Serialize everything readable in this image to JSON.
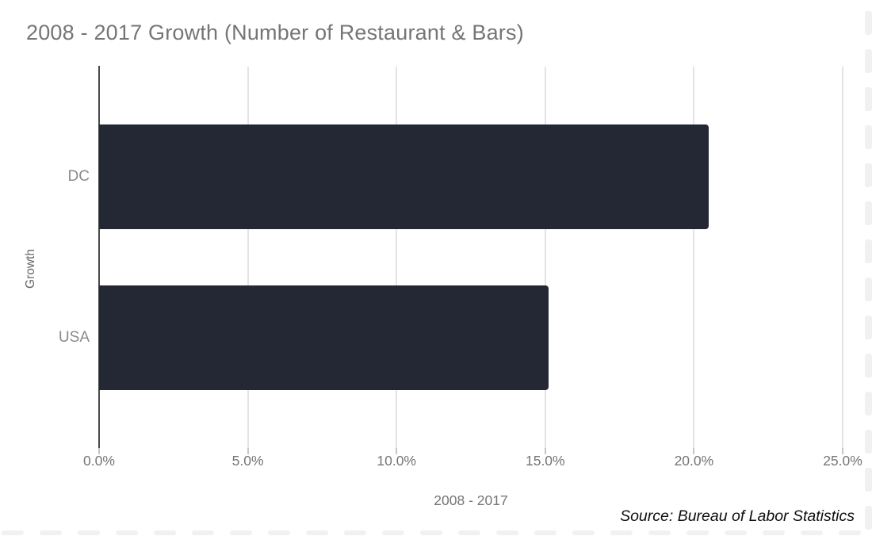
{
  "chart_data": {
    "type": "bar",
    "orientation": "horizontal",
    "title": "2008 - 2017 Growth (Number of Restaurant & Bars)",
    "categories": [
      "DC",
      "USA"
    ],
    "values": [
      20.5,
      15.1
    ],
    "xlabel": "2008 - 2017",
    "ylabel": "Growth",
    "xlim": [
      0,
      25
    ],
    "xtick_labels": [
      "0.0%",
      "5.0%",
      "10.0%",
      "15.0%",
      "20.0%",
      "25.0%"
    ],
    "grid": true,
    "legend": false,
    "bar_color": "#242834",
    "gridline_color": "#e4e4e6",
    "axis_color": "#4a4a4a",
    "category_label_color": "#8a8a8a",
    "tick_label_color": "#757575",
    "title_color": "#757575"
  },
  "footer": {
    "source": "Source: Bureau of Labor Statistics"
  },
  "decor": {
    "edge_dash_color": "#f1f1f4"
  }
}
